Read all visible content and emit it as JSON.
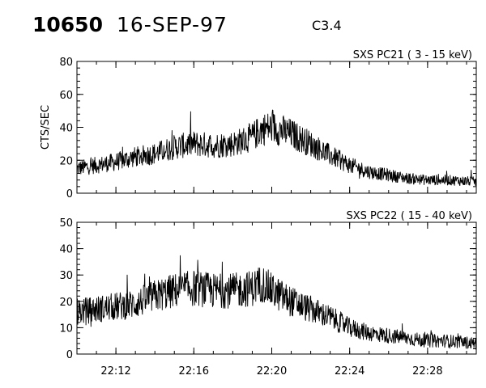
{
  "header": {
    "event_number": "10650",
    "date": "16-SEP-97",
    "flare_class": "C3.4"
  },
  "chart_data": [
    {
      "type": "line",
      "title": "SXS PC21  (  3 - 15 keV)",
      "ylabel": "CTS/SEC",
      "ylim": [
        0,
        80
      ],
      "yticks": [
        "0",
        "20",
        "40",
        "60",
        "80"
      ],
      "xlim": [
        "22:10:00",
        "22:30:30"
      ],
      "xticks": [
        "22:12",
        "22:16",
        "22:20",
        "22:24",
        "22:28"
      ],
      "show_xtick_labels": false,
      "series": [
        {
          "x": [
            "22:10:00",
            "22:11:00",
            "22:12:00",
            "22:13:00",
            "22:14:00",
            "22:15:00",
            "22:16:00",
            "22:17:00",
            "22:18:00",
            "22:19:00",
            "22:19:30",
            "22:20:00",
            "22:21:00",
            "22:22:00",
            "22:23:00",
            "22:24:00",
            "22:25:00",
            "22:26:00",
            "22:27:00",
            "22:28:00",
            "22:29:00",
            "22:30:30"
          ],
          "values": [
            15,
            17,
            19,
            22,
            24,
            28,
            30,
            29,
            30,
            34,
            39,
            40,
            36,
            30,
            23,
            17,
            13,
            11,
            9,
            8,
            8,
            7
          ]
        }
      ]
    },
    {
      "type": "line",
      "title": "SXS PC22  ( 15 - 40 keV)",
      "ylabel": "",
      "ylim": [
        0,
        50
      ],
      "yticks": [
        "0",
        "10",
        "20",
        "30",
        "40",
        "50"
      ],
      "xlim": [
        "22:10:00",
        "22:30:30"
      ],
      "xticks": [
        "22:12",
        "22:16",
        "22:20",
        "22:24",
        "22:28"
      ],
      "show_xtick_labels": true,
      "series": [
        {
          "x": [
            "22:10:00",
            "22:11:00",
            "22:12:00",
            "22:13:00",
            "22:14:00",
            "22:15:00",
            "22:16:00",
            "22:17:00",
            "22:18:00",
            "22:19:00",
            "22:19:30",
            "22:20:00",
            "22:21:00",
            "22:22:00",
            "22:23:00",
            "22:24:00",
            "22:25:00",
            "22:26:00",
            "22:27:00",
            "22:28:00",
            "22:29:00",
            "22:30:30"
          ],
          "values": [
            16,
            17,
            18,
            19,
            22,
            24,
            25,
            24,
            24,
            25,
            27,
            24,
            20,
            17,
            14,
            10,
            8,
            7,
            6,
            5,
            5,
            4
          ]
        }
      ]
    }
  ]
}
